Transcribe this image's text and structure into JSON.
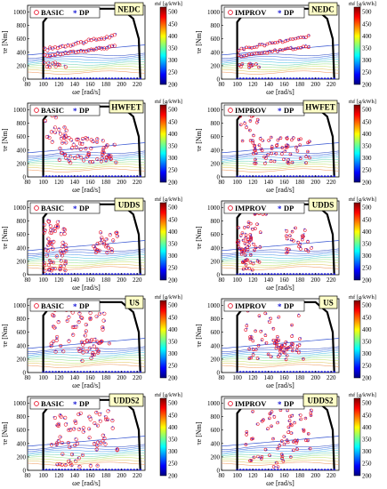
{
  "figure": {
    "x_label": "ωe [rad/s]",
    "y_label": "τe [Nm]",
    "colorbar_title": "ṁf [g/kWh]",
    "series_label": "DP"
  },
  "colors": {
    "basic_marker": "#e8132b",
    "dp_marker": "#1a1ad6",
    "boundary": "#000000",
    "cycle_box": "#ffffc8",
    "legend_border": "#000000"
  },
  "chart_data": [
    {
      "type": "scatter",
      "strategy": "BASIC",
      "cycle": "NEDC",
      "x_ticks": [
        80,
        100,
        120,
        140,
        160,
        180,
        200,
        220
      ],
      "y_ticks": [
        0,
        200,
        400,
        600,
        800,
        1000
      ],
      "xlim": [
        80,
        230
      ],
      "ylim": [
        0,
        1100
      ],
      "colorbar_ticks": [
        200,
        250,
        300,
        350,
        400,
        450,
        500
      ],
      "colorbar_range": [
        200,
        520
      ]
    },
    {
      "type": "scatter",
      "strategy": "IMPROV",
      "cycle": "NEDC",
      "x_ticks": [
        80,
        100,
        120,
        140,
        160,
        180,
        200,
        220
      ],
      "y_ticks": [
        0,
        200,
        400,
        600,
        800,
        1000
      ],
      "xlim": [
        80,
        230
      ],
      "ylim": [
        0,
        1100
      ],
      "colorbar_ticks": [
        200,
        250,
        300,
        350,
        400,
        450,
        500
      ],
      "colorbar_range": [
        200,
        520
      ]
    },
    {
      "type": "scatter",
      "strategy": "BASIC",
      "cycle": "HWFET",
      "x_ticks": [
        80,
        100,
        120,
        140,
        160,
        180,
        200,
        220
      ],
      "y_ticks": [
        0,
        200,
        400,
        600,
        800,
        1000
      ],
      "xlim": [
        80,
        230
      ],
      "ylim": [
        0,
        1100
      ],
      "colorbar_ticks": [
        200,
        250,
        300,
        350,
        400,
        450,
        500
      ],
      "colorbar_range": [
        200,
        520
      ]
    },
    {
      "type": "scatter",
      "strategy": "IMPROV",
      "cycle": "HWFET",
      "x_ticks": [
        80,
        100,
        120,
        140,
        160,
        180,
        200,
        220
      ],
      "y_ticks": [
        0,
        200,
        400,
        600,
        800,
        1000
      ],
      "xlim": [
        80,
        230
      ],
      "ylim": [
        0,
        1100
      ],
      "colorbar_ticks": [
        200,
        250,
        300,
        350,
        400,
        450,
        500
      ],
      "colorbar_range": [
        200,
        520
      ]
    },
    {
      "type": "scatter",
      "strategy": "BASIC",
      "cycle": "UDDS",
      "x_ticks": [
        80,
        100,
        120,
        140,
        160,
        180,
        200,
        220
      ],
      "y_ticks": [
        0,
        200,
        400,
        600,
        800,
        1000
      ],
      "xlim": [
        80,
        230
      ],
      "ylim": [
        0,
        1100
      ],
      "colorbar_ticks": [
        200,
        250,
        300,
        350,
        400,
        450,
        500
      ],
      "colorbar_range": [
        200,
        520
      ]
    },
    {
      "type": "scatter",
      "strategy": "IMPROV",
      "cycle": "UDDS",
      "x_ticks": [
        80,
        100,
        120,
        140,
        160,
        180,
        200,
        220
      ],
      "y_ticks": [
        0,
        200,
        400,
        600,
        800,
        1000
      ],
      "xlim": [
        80,
        230
      ],
      "ylim": [
        0,
        1100
      ],
      "colorbar_ticks": [
        200,
        250,
        300,
        350,
        400,
        450,
        500
      ],
      "colorbar_range": [
        200,
        520
      ]
    },
    {
      "type": "scatter",
      "strategy": "BASIC",
      "cycle": "US",
      "x_ticks": [
        80,
        100,
        120,
        140,
        160,
        180,
        200,
        220
      ],
      "y_ticks": [
        0,
        200,
        400,
        600,
        800,
        1000
      ],
      "xlim": [
        80,
        230
      ],
      "ylim": [
        0,
        1100
      ],
      "colorbar_ticks": [
        200,
        250,
        300,
        350,
        400,
        450,
        500
      ],
      "colorbar_range": [
        200,
        520
      ]
    },
    {
      "type": "scatter",
      "strategy": "IMPROV",
      "cycle": "US",
      "x_ticks": [
        80,
        100,
        120,
        140,
        160,
        180,
        200,
        220
      ],
      "y_ticks": [
        0,
        200,
        400,
        600,
        800,
        1000
      ],
      "xlim": [
        80,
        230
      ],
      "ylim": [
        0,
        1100
      ],
      "colorbar_ticks": [
        200,
        250,
        300,
        350,
        400,
        450,
        500
      ],
      "colorbar_range": [
        200,
        520
      ]
    },
    {
      "type": "scatter",
      "strategy": "BASIC",
      "cycle": "UDDS2",
      "x_ticks": [
        80,
        100,
        120,
        140,
        160,
        180,
        200,
        220
      ],
      "y_ticks": [
        0,
        200,
        400,
        600,
        800,
        1000
      ],
      "xlim": [
        80,
        230
      ],
      "ylim": [
        0,
        1100
      ],
      "colorbar_ticks": [
        200,
        250,
        300,
        350,
        400,
        450,
        500
      ],
      "colorbar_range": [
        200,
        520
      ]
    },
    {
      "type": "scatter",
      "strategy": "IMPROV",
      "cycle": "UDDS2",
      "x_ticks": [
        80,
        100,
        120,
        140,
        160,
        180,
        200,
        220
      ],
      "y_ticks": [
        0,
        200,
        400,
        600,
        800,
        1000
      ],
      "xlim": [
        80,
        230
      ],
      "ylim": [
        0,
        1100
      ],
      "colorbar_ticks": [
        200,
        250,
        300,
        350,
        400,
        450,
        500
      ],
      "colorbar_range": [
        200,
        520
      ]
    }
  ]
}
